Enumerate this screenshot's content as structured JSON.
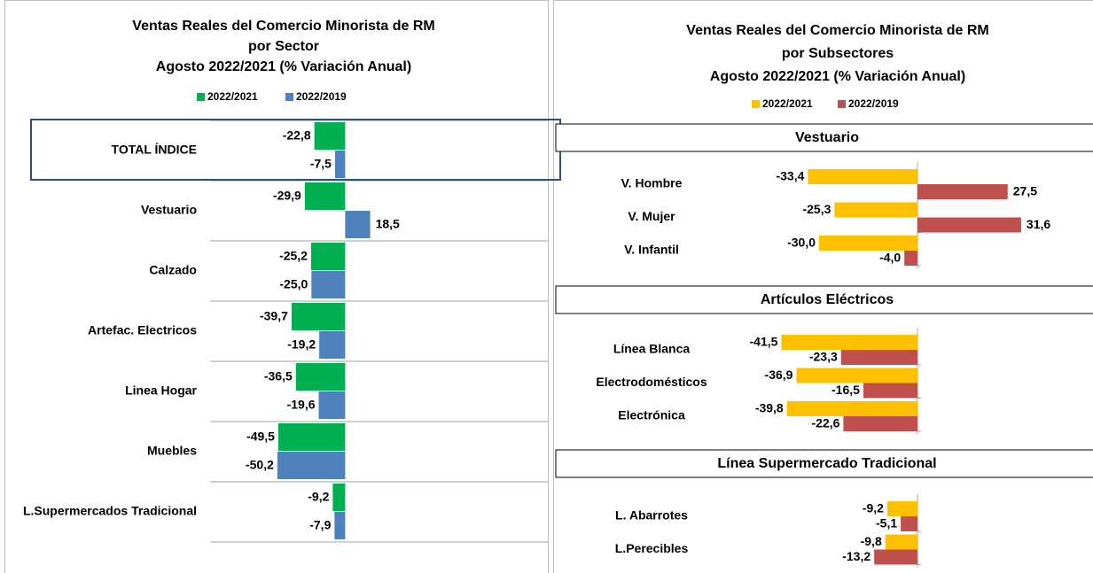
{
  "chart_data": [
    {
      "type": "hbar",
      "title": [
        "Ventas Reales del Comercio Minorista de RM",
        "por Sector",
        "Agosto 2022/2021 (% Variación Anual)"
      ],
      "categories": [
        "TOTAL ÍNDICE",
        "Vestuario",
        "Calzado",
        "Artefac. Electricos",
        "Linea Hogar",
        "Muebles",
        "L.Supermercados Tradicional"
      ],
      "series": [
        {
          "name": "2022/2021",
          "color": "#00b050",
          "label_color": "#00b050",
          "values": [
            -22.8,
            -29.9,
            -25.2,
            -39.7,
            -36.5,
            -49.5,
            -9.2
          ],
          "value_labels": [
            "-22,8",
            "-29,9",
            "-25,2",
            "-39,7",
            "-36,5",
            "-49,5",
            "-9,2"
          ]
        },
        {
          "name": "2022/2019",
          "color": "#4f81bd",
          "label_color": "#1f6eb3",
          "values": [
            -7.5,
            18.5,
            -25.0,
            -19.2,
            -19.6,
            -50.2,
            -7.9
          ],
          "value_labels": [
            "-7,5",
            "18,5",
            "-25,0",
            "-19,2",
            "-19,6",
            "-50,2",
            "-7,9"
          ]
        }
      ],
      "xlim": [
        -100,
        150
      ]
    },
    {
      "type": "grouped-hbar",
      "title": [
        "Ventas Reales del Comercio Minorista de RM",
        "por Subsectores",
        "Agosto 2022/2021 (% Variación Anual)"
      ],
      "series": [
        {
          "name": "2022/2021",
          "color": "#ffc000",
          "label_color": "#ffc000"
        },
        {
          "name": "2022/2019",
          "color": "#c0504d",
          "label_color": "#c0504d"
        }
      ],
      "xlim": [
        -50,
        50
      ],
      "panels": [
        {
          "title": "Vestuario",
          "categories": [
            "V. Hombre",
            "V. Mujer",
            "V. Infantil"
          ],
          "series": [
            {
              "values": [
                -33.4,
                -25.3,
                -30.0
              ],
              "value_labels": [
                "-33,4",
                "-25,3",
                "-30,0"
              ]
            },
            {
              "values": [
                27.5,
                31.6,
                -4.0
              ],
              "value_labels": [
                "27,5",
                "31,6",
                "-4,0"
              ]
            }
          ]
        },
        {
          "title": "Artículos Eléctricos",
          "categories": [
            "Línea Blanca",
            "Electrodomésticos",
            "Electrónica"
          ],
          "series": [
            {
              "values": [
                -41.5,
                -36.9,
                -39.8
              ],
              "value_labels": [
                "-41,5",
                "-36,9",
                "-39,8"
              ]
            },
            {
              "values": [
                -23.3,
                -16.5,
                -22.6
              ],
              "value_labels": [
                "-23,3",
                "-16,5",
                "-22,6"
              ]
            }
          ]
        },
        {
          "title": "Línea Supermercado Tradicional",
          "categories": [
            "L. Abarrotes",
            "L.Perecibles"
          ],
          "series": [
            {
              "values": [
                -9.2,
                -9.8
              ],
              "value_labels": [
                "-9,2",
                "-9,8"
              ]
            },
            {
              "values": [
                -5.1,
                -13.2
              ],
              "value_labels": [
                "-5,1",
                "-13,2"
              ]
            }
          ]
        }
      ]
    }
  ]
}
